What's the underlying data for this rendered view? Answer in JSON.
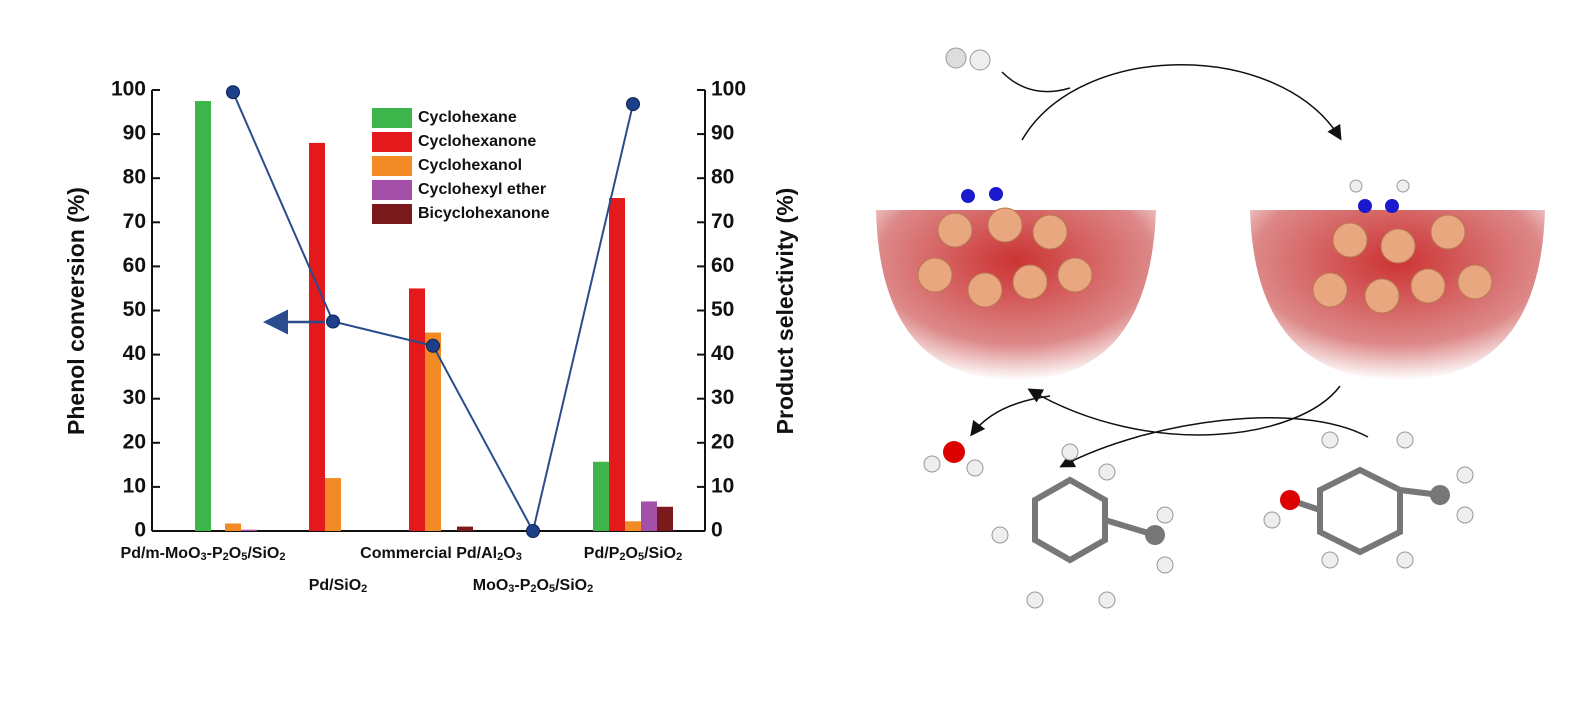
{
  "chart_data": {
    "type": "bar",
    "categories": [
      "Pd/m-MoO3-P2O5/SiO2",
      "Pd/SiO2",
      "Commercial Pd/Al2O3",
      "MoO3-P2O5/SiO2",
      "Pd/P2O5/SiO2"
    ],
    "series": [
      {
        "name": "Cyclohexane",
        "color": "#3db54a",
        "axis": "y2",
        "values": [
          97.5,
          0,
          0,
          0,
          15.7
        ]
      },
      {
        "name": "Cyclohexanone",
        "color": "#e3191c",
        "axis": "y2",
        "values": [
          0,
          88,
          55,
          0,
          75.5
        ]
      },
      {
        "name": "Cyclohexanol",
        "color": "#f28a26",
        "axis": "y2",
        "values": [
          1.7,
          12,
          45,
          0,
          2.2
        ]
      },
      {
        "name": "Cyclohexyl ether",
        "color": "#a44fa8",
        "axis": "y2",
        "values": [
          0.3,
          0,
          0,
          0,
          6.7
        ]
      },
      {
        "name": "Bicyclohexanone",
        "color": "#7a1a1c",
        "axis": "y2",
        "values": [
          0,
          0,
          1,
          0,
          5.5
        ]
      }
    ],
    "conversion": {
      "color": "#2b4c8c",
      "values": [
        99.5,
        47.5,
        42,
        0,
        96.8
      ]
    },
    "ylabel": "Phenol conversion (%)",
    "y2label": "Product selectivity (%)",
    "ylim": [
      0,
      100
    ],
    "yticks": [
      0,
      10,
      20,
      30,
      40,
      50,
      60,
      70,
      80,
      90,
      100
    ],
    "y2lim": [
      0,
      100
    ],
    "y2ticks": [
      0,
      10,
      20,
      30,
      40,
      50,
      60,
      70,
      80,
      90,
      100
    ],
    "legend": "top"
  }
}
